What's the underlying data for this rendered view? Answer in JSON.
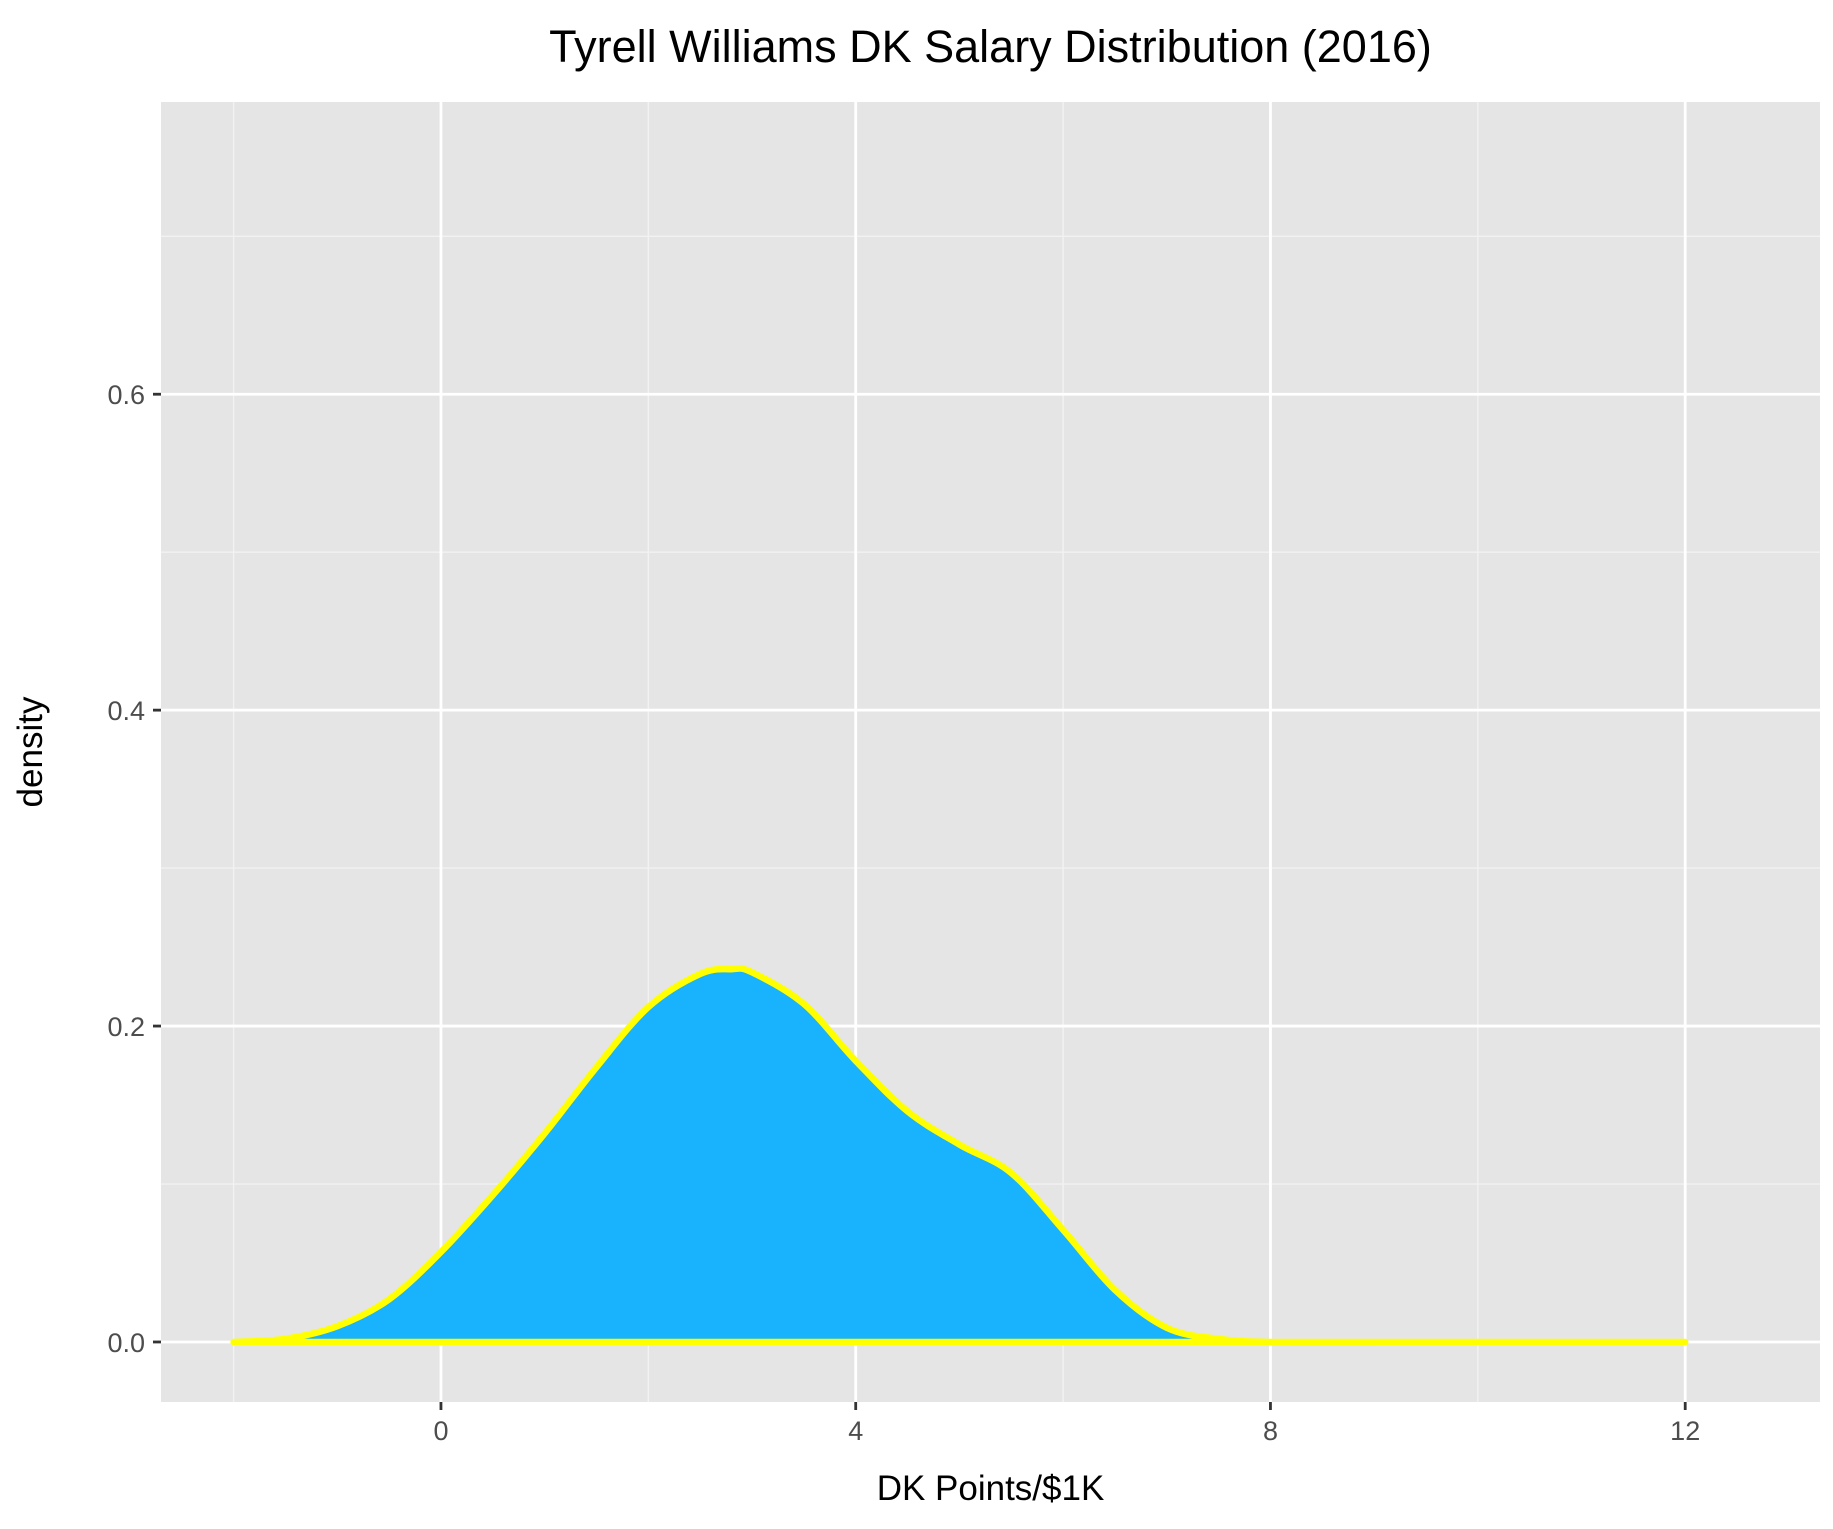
{
  "chart_data": {
    "type": "area",
    "title": "Tyrell Williams DK Salary Distribution (2016)",
    "xlabel": "DK Points/$1K",
    "ylabel": "density",
    "xlim": [
      -2.7,
      13.3
    ],
    "ylim": [
      -0.038,
      0.785
    ],
    "x_ticks": [
      0,
      4,
      8,
      12
    ],
    "x_tick_labels": [
      "0",
      "4",
      "8",
      "12"
    ],
    "y_ticks": [
      0.0,
      0.2,
      0.4,
      0.6
    ],
    "y_tick_labels": [
      "0.0",
      "0.2",
      "0.4",
      "0.6"
    ],
    "grid": true,
    "series": [
      {
        "x": [
          -2.0,
          -1.5,
          -1.0,
          -0.5,
          0.0,
          0.5,
          1.0,
          1.5,
          2.0,
          2.5,
          2.8,
          3.0,
          3.5,
          4.0,
          4.5,
          5.0,
          5.5,
          6.0,
          6.5,
          7.0,
          7.5,
          8.0,
          9.0,
          10.0,
          11.0,
          12.0
        ],
        "y": [
          0.0,
          0.002,
          0.01,
          0.027,
          0.057,
          0.093,
          0.132,
          0.174,
          0.212,
          0.233,
          0.236,
          0.234,
          0.214,
          0.178,
          0.146,
          0.125,
          0.107,
          0.071,
          0.033,
          0.009,
          0.002,
          0.0,
          0.0,
          0.0,
          0.0,
          0.0
        ],
        "fill": "#19b2fc",
        "line_color": "#ffff00"
      }
    ],
    "colors": {
      "panel_background": "#e5e5e5",
      "grid_major": "#ffffff",
      "grid_minor": "#f2f2f2",
      "fill": "#19b2fc",
      "line": "#ffff00"
    }
  }
}
